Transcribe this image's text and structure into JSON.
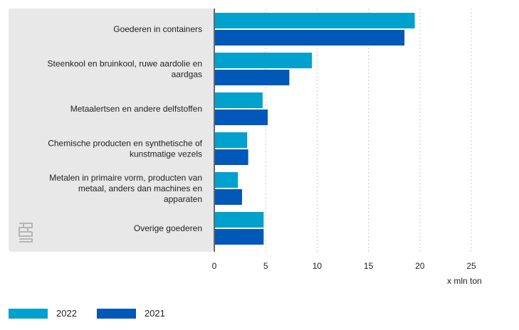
{
  "chart_data": {
    "type": "bar",
    "orientation": "horizontal",
    "categories": [
      [
        "Goederen in containers"
      ],
      [
        "Steenkool en bruinkool, ruwe aardolie en",
        "aardgas"
      ],
      [
        "Metaalertsen en andere delfstoffen"
      ],
      [
        "Chemische producten en synthetische of",
        "kunstmatige vezels"
      ],
      [
        "Metalen in primaire vorm, producten van",
        "metaal, anders dan machines en",
        "apparaten"
      ],
      [
        "Overige goederen"
      ]
    ],
    "series": [
      {
        "name": "2022",
        "color": "#00a1cd",
        "values": [
          19.5,
          9.5,
          4.7,
          3.2,
          2.3,
          4.8
        ]
      },
      {
        "name": "2021",
        "color": "#0058b8",
        "values": [
          18.5,
          7.3,
          5.2,
          3.3,
          2.7,
          4.8
        ]
      }
    ],
    "xticks": [
      "0",
      "5",
      "10",
      "15",
      "20",
      "25"
    ],
    "xlim": [
      0,
      25
    ],
    "unit_label": "x mln ton",
    "grid": "vertical dotted",
    "legend_position": "bottom-left"
  }
}
